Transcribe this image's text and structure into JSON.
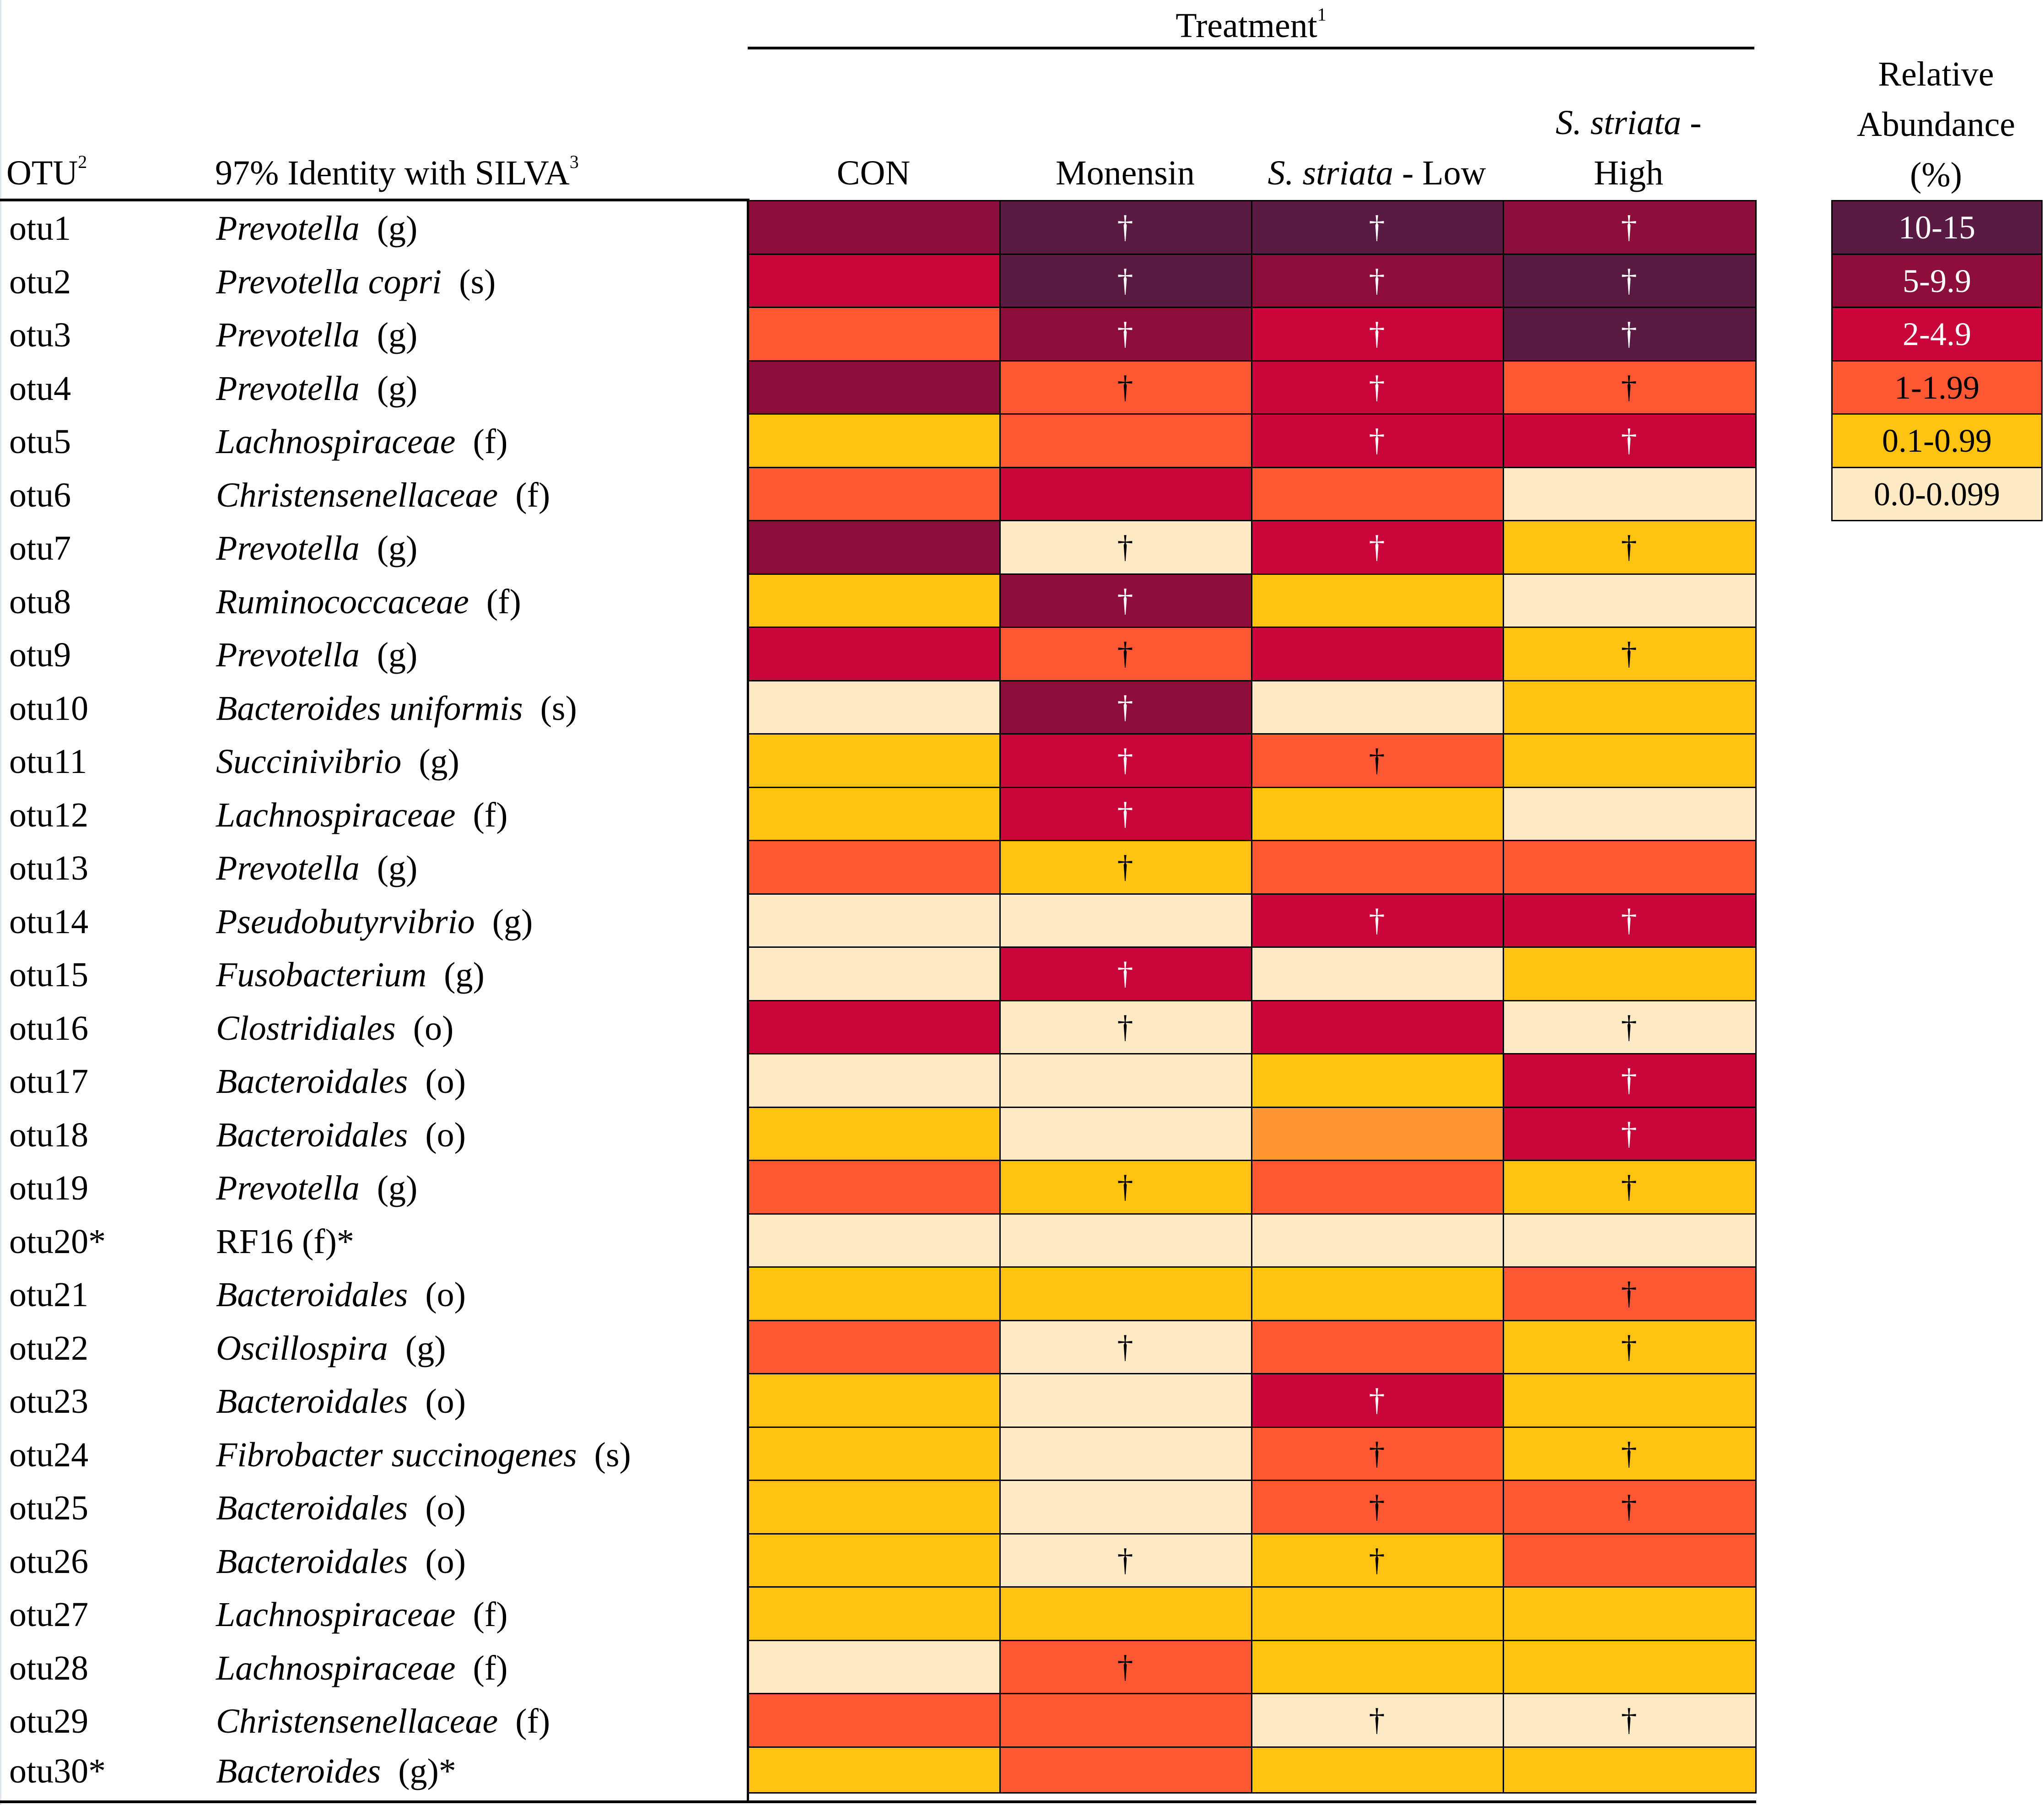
{
  "header": {
    "treatment_label": "Treatment",
    "treatment_sup": "1",
    "otu_label": "OTU",
    "otu_sup": "2",
    "identity_label": "97% Identity with SILVA",
    "identity_sup": "3",
    "columns": [
      {
        "lines": [
          "CON"
        ],
        "italic_part": ""
      },
      {
        "lines": [
          "Monensin"
        ],
        "italic_part": ""
      },
      {
        "lines": [
          "S. striata - Low"
        ],
        "italic_part": "S. striata"
      },
      {
        "lines": [
          "S. striata -",
          "High"
        ],
        "italic_part": "S. striata"
      }
    ],
    "legend_title": [
      "Relative",
      "Abundance",
      "(%)"
    ]
  },
  "legend": [
    {
      "label": "10-15",
      "color": "#5a1a43",
      "text_color": "#ffffff"
    },
    {
      "label": "5-9.9",
      "color": "#8e0e3b",
      "text_color": "#ffffff"
    },
    {
      "label": "2-4.9",
      "color": "#c8063a",
      "text_color": "#ffffff"
    },
    {
      "label": "1-1.99",
      "color": "#ff5733",
      "text_color": "#000000"
    },
    {
      "label": "0.1-0.99",
      "color": "#ffc30f",
      "text_color": "#000000"
    },
    {
      "label": "0.0-0.099",
      "color": "#fde9c4",
      "text_color": "#000000"
    }
  ],
  "chart_data": {
    "type": "heatmap",
    "title": "Treatment",
    "x": [
      "CON",
      "Monensin",
      "S. striata - Low",
      "S. striata - High"
    ],
    "legend_title": "Relative Abundance (%)",
    "value_note": "values are relative abundance class indices into legend (0 = 10-15, 1 = 5-9.9, 2 = 2-4.9, 3 = 1-1.99, 4 = 0.1-0.99, 5 = 0.0-0.099, 6 = unlabeled orange shade)",
    "extra_color": "#ff9633",
    "dagger_symbol": "†",
    "rows": [
      {
        "otu": "otu1",
        "taxon": "Prevotella",
        "rank": "(g)",
        "italic": true,
        "star": "",
        "values": [
          1,
          0,
          0,
          1
        ],
        "dagger": [
          false,
          true,
          true,
          true
        ]
      },
      {
        "otu": "otu2",
        "taxon": "Prevotella copri",
        "rank": "(s)",
        "italic": true,
        "star": "",
        "values": [
          2,
          0,
          1,
          0
        ],
        "dagger": [
          false,
          true,
          true,
          true
        ]
      },
      {
        "otu": "otu3",
        "taxon": "Prevotella",
        "rank": "(g)",
        "italic": true,
        "star": "",
        "values": [
          3,
          1,
          2,
          0
        ],
        "dagger": [
          false,
          true,
          true,
          true
        ]
      },
      {
        "otu": "otu4",
        "taxon": "Prevotella",
        "rank": "(g)",
        "italic": true,
        "star": "",
        "values": [
          1,
          3,
          2,
          3
        ],
        "dagger": [
          false,
          true,
          true,
          true
        ]
      },
      {
        "otu": "otu5",
        "taxon": "Lachnospiraceae",
        "rank": "(f)",
        "italic": true,
        "star": "",
        "values": [
          4,
          3,
          2,
          2
        ],
        "dagger": [
          false,
          false,
          true,
          true
        ]
      },
      {
        "otu": "otu6",
        "taxon": "Christensenellaceae",
        "rank": "(f)",
        "italic": true,
        "star": "",
        "values": [
          3,
          2,
          3,
          5
        ],
        "dagger": [
          false,
          false,
          false,
          false
        ]
      },
      {
        "otu": "otu7",
        "taxon": "Prevotella",
        "rank": "(g)",
        "italic": true,
        "star": "",
        "values": [
          1,
          5,
          2,
          4
        ],
        "dagger": [
          false,
          true,
          true,
          true
        ]
      },
      {
        "otu": "otu8",
        "taxon": "Ruminococcaceae",
        "rank": "(f)",
        "italic": true,
        "star": "",
        "values": [
          4,
          1,
          4,
          5
        ],
        "dagger": [
          false,
          true,
          false,
          false
        ]
      },
      {
        "otu": "otu9",
        "taxon": "Prevotella",
        "rank": "(g)",
        "italic": true,
        "star": "",
        "values": [
          2,
          3,
          2,
          4
        ],
        "dagger": [
          false,
          true,
          false,
          true
        ]
      },
      {
        "otu": "otu10",
        "taxon": "Bacteroides uniformis",
        "rank": "(s)",
        "italic": true,
        "star": "",
        "values": [
          5,
          1,
          5,
          4
        ],
        "dagger": [
          false,
          true,
          false,
          false
        ]
      },
      {
        "otu": "otu11",
        "taxon": "Succinivibrio",
        "rank": "(g)",
        "italic": true,
        "star": "",
        "values": [
          4,
          2,
          3,
          4
        ],
        "dagger": [
          false,
          true,
          true,
          false
        ]
      },
      {
        "otu": "otu12",
        "taxon": "Lachnospiraceae",
        "rank": "(f)",
        "italic": true,
        "star": "",
        "values": [
          4,
          2,
          4,
          5
        ],
        "dagger": [
          false,
          true,
          false,
          false
        ]
      },
      {
        "otu": "otu13",
        "taxon": "Prevotella",
        "rank": "(g)",
        "italic": true,
        "star": "",
        "values": [
          3,
          4,
          3,
          3
        ],
        "dagger": [
          false,
          true,
          false,
          false
        ]
      },
      {
        "otu": "otu14",
        "taxon": "Pseudobutyrvibrio",
        "rank": "(g)",
        "italic": true,
        "star": "",
        "values": [
          5,
          5,
          2,
          2
        ],
        "dagger": [
          false,
          false,
          true,
          true
        ]
      },
      {
        "otu": "otu15",
        "taxon": "Fusobacterium",
        "rank": "(g)",
        "italic": true,
        "star": "",
        "values": [
          5,
          2,
          5,
          4
        ],
        "dagger": [
          false,
          true,
          false,
          false
        ]
      },
      {
        "otu": "otu16",
        "taxon": "Clostridiales",
        "rank": "(o)",
        "italic": true,
        "star": "",
        "values": [
          2,
          5,
          2,
          5
        ],
        "dagger": [
          false,
          true,
          false,
          true
        ]
      },
      {
        "otu": "otu17",
        "taxon": "Bacteroidales",
        "rank": "(o)",
        "italic": true,
        "star": "",
        "values": [
          5,
          5,
          4,
          2
        ],
        "dagger": [
          false,
          false,
          false,
          true
        ]
      },
      {
        "otu": "otu18",
        "taxon": "Bacteroidales",
        "rank": "(o)",
        "italic": true,
        "star": "",
        "values": [
          4,
          5,
          6,
          2
        ],
        "dagger": [
          false,
          false,
          false,
          true
        ]
      },
      {
        "otu": "otu19",
        "taxon": "Prevotella",
        "rank": "(g)",
        "italic": true,
        "star": "",
        "values": [
          3,
          4,
          3,
          4
        ],
        "dagger": [
          false,
          true,
          false,
          true
        ]
      },
      {
        "otu": "otu20*",
        "taxon": "RF16 (f)*",
        "rank": "",
        "italic": false,
        "star": "",
        "values": [
          5,
          5,
          5,
          5
        ],
        "dagger": [
          false,
          false,
          false,
          false
        ]
      },
      {
        "otu": "otu21",
        "taxon": "Bacteroidales",
        "rank": "(o)",
        "italic": true,
        "star": "",
        "values": [
          4,
          4,
          4,
          3
        ],
        "dagger": [
          false,
          false,
          false,
          true
        ]
      },
      {
        "otu": "otu22",
        "taxon": "Oscillospira",
        "rank": "(g)",
        "italic": true,
        "star": "",
        "values": [
          3,
          5,
          3,
          4
        ],
        "dagger": [
          false,
          true,
          false,
          true
        ]
      },
      {
        "otu": "otu23",
        "taxon": "Bacteroidales",
        "rank": "(o)",
        "italic": true,
        "star": "",
        "values": [
          4,
          5,
          2,
          4
        ],
        "dagger": [
          false,
          false,
          true,
          false
        ]
      },
      {
        "otu": "otu24",
        "taxon": "Fibrobacter succinogenes",
        "rank": "(s)",
        "italic": true,
        "star": "",
        "values": [
          4,
          5,
          3,
          4
        ],
        "dagger": [
          false,
          false,
          true,
          true
        ]
      },
      {
        "otu": "otu25",
        "taxon": "Bacteroidales",
        "rank": "(o)",
        "italic": true,
        "star": "",
        "values": [
          4,
          5,
          3,
          3
        ],
        "dagger": [
          false,
          false,
          true,
          true
        ]
      },
      {
        "otu": "otu26",
        "taxon": "Bacteroidales",
        "rank": "(o)",
        "italic": true,
        "star": "",
        "values": [
          4,
          5,
          4,
          3
        ],
        "dagger": [
          false,
          true,
          true,
          false
        ]
      },
      {
        "otu": "otu27",
        "taxon": "Lachnospiraceae",
        "rank": "(f)",
        "italic": true,
        "star": "",
        "values": [
          4,
          4,
          4,
          4
        ],
        "dagger": [
          false,
          false,
          false,
          false
        ]
      },
      {
        "otu": "otu28",
        "taxon": "Lachnospiraceae",
        "rank": "(f)",
        "italic": true,
        "star": "",
        "values": [
          5,
          3,
          4,
          4
        ],
        "dagger": [
          false,
          true,
          false,
          false
        ]
      },
      {
        "otu": "otu29",
        "taxon": "Christensenellaceae",
        "rank": "(f)",
        "italic": true,
        "star": "",
        "values": [
          3,
          3,
          5,
          5
        ],
        "dagger": [
          false,
          false,
          true,
          true
        ]
      },
      {
        "otu": "otu30*",
        "taxon": "Bacteroides",
        "rank": "(g)*",
        "italic": true,
        "star": "",
        "values": [
          4,
          3,
          4,
          4
        ],
        "dagger": [
          false,
          false,
          false,
          false
        ]
      }
    ]
  }
}
